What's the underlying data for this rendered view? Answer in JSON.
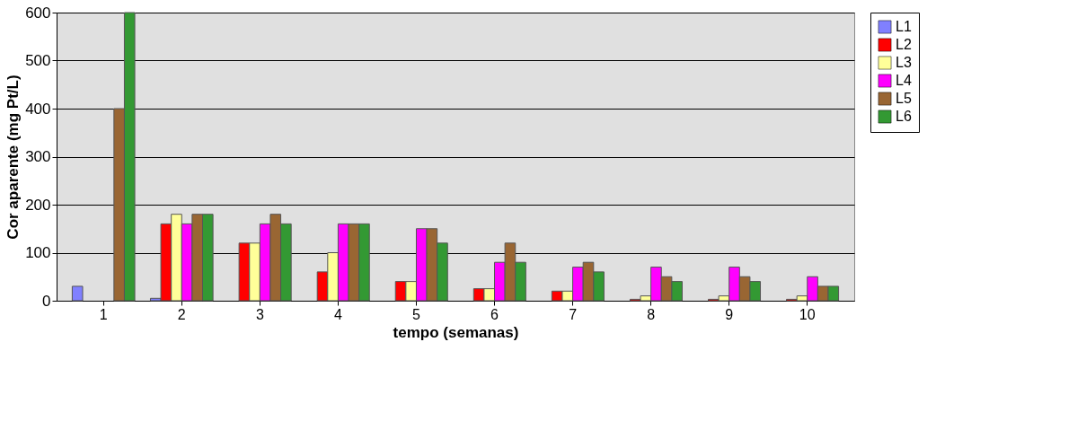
{
  "chart_data": {
    "type": "bar",
    "xlabel": "tempo (semanas)",
    "ylabel": "Cor aparente (mg Pt/L)",
    "categories": [
      "1",
      "2",
      "3",
      "4",
      "5",
      "6",
      "7",
      "8",
      "9",
      "10"
    ],
    "series": [
      {
        "name": "L1",
        "color": "#8080ff",
        "values": [
          30,
          5,
          null,
          null,
          null,
          null,
          null,
          null,
          null,
          null
        ]
      },
      {
        "name": "L2",
        "color": "#ff0000",
        "values": [
          null,
          160,
          120,
          60,
          40,
          25,
          20,
          3,
          3,
          3
        ]
      },
      {
        "name": "L3",
        "color": "#ffff99",
        "values": [
          null,
          180,
          120,
          100,
          40,
          25,
          20,
          10,
          10,
          10
        ]
      },
      {
        "name": "L4",
        "color": "#ff00ff",
        "values": [
          null,
          160,
          160,
          160,
          150,
          80,
          70,
          70,
          70,
          50
        ]
      },
      {
        "name": "L5",
        "color": "#996633",
        "values": [
          400,
          180,
          180,
          160,
          150,
          120,
          80,
          50,
          50,
          30
        ]
      },
      {
        "name": "L6",
        "color": "#339933",
        "values": [
          600,
          180,
          160,
          160,
          120,
          80,
          60,
          40,
          40,
          30
        ]
      }
    ],
    "ylim": [
      0,
      600
    ],
    "yticks": [
      0,
      100,
      200,
      300,
      400,
      500,
      600
    ],
    "grid": "y",
    "legend": "right"
  }
}
